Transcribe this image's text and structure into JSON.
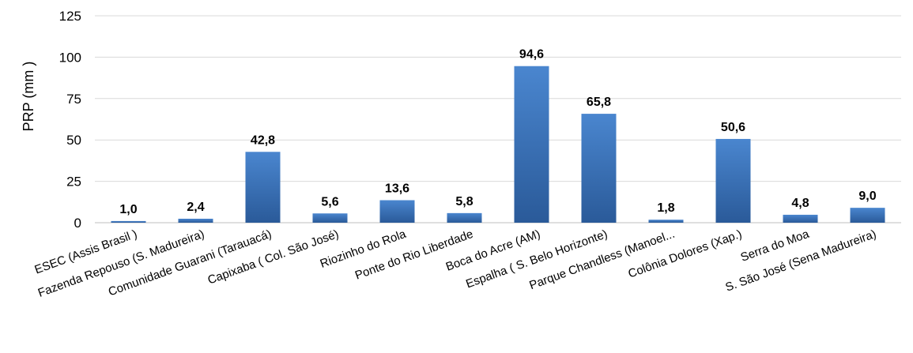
{
  "chart_data": {
    "type": "bar",
    "categories": [
      "ESEC (Assis Brasil )",
      "Fazenda Repouso (S. Madureira)",
      "Comunidade Guarani (Tarauacá)",
      "Capixaba ( Col. São José)",
      "Riozinho do Rola",
      "Ponte do Rio Liberdade",
      "Boca do Acre (AM)",
      "Espalha ( S. Belo Horizonte)",
      "Parque Chandless (Manoel...",
      "Colônia Dolores (Xap.)",
      "Serra do Moa",
      "S. São José (Sena Madureira)"
    ],
    "values": [
      1.0,
      2.4,
      42.8,
      5.6,
      13.6,
      5.8,
      94.6,
      65.8,
      1.8,
      50.6,
      4.8,
      9.0
    ],
    "data_labels": [
      "1,0",
      "2,4",
      "42,8",
      "5,6",
      "13,6",
      "5,8",
      "94,6",
      "65,8",
      "1,8",
      "50,6",
      "4,8",
      "9,0"
    ],
    "ylabel": "PRP (mm )",
    "ylim": [
      0,
      125
    ],
    "yticks": [
      0,
      25,
      50,
      75,
      100,
      125
    ],
    "grid": true,
    "legend": "none",
    "bar_color_top": "#4a86cf",
    "bar_color_bottom": "#2a5a99"
  }
}
